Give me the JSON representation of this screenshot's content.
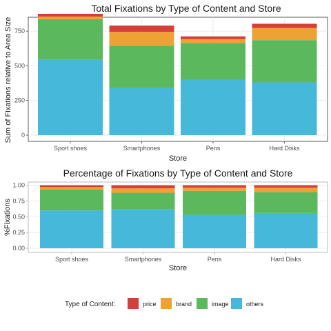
{
  "chart_data": [
    {
      "type": "bar",
      "stacked": true,
      "title": "Total Fixations by Type of Content and Store",
      "xlabel": "Store",
      "ylabel": "Sum of Fixations relative to Area Size",
      "ylim": [
        0,
        850
      ],
      "yticks": [
        "0",
        "250",
        "500",
        "750"
      ],
      "categories": [
        "Sport shoes",
        "Smartphones",
        "Pens",
        "Hard Disks"
      ],
      "series": [
        {
          "name": "others",
          "color": "#46B8DA",
          "values": [
            545,
            340,
            400,
            380
          ]
        },
        {
          "name": "image",
          "color": "#5CB85C",
          "values": [
            290,
            305,
            265,
            305
          ]
        },
        {
          "name": "brand",
          "color": "#EEA236",
          "values": [
            20,
            100,
            27,
            88
          ]
        },
        {
          "name": "price",
          "color": "#D43F3A",
          "values": [
            20,
            45,
            20,
            30
          ]
        }
      ],
      "grid": true
    },
    {
      "type": "bar",
      "stacked": true,
      "title": "Percentage of Fixations by Type of Content and Store",
      "xlabel": "Store",
      "ylabel": "%Fixations",
      "ylim": [
        0,
        1.05
      ],
      "yticks": [
        "0.00",
        "0.25",
        "0.50",
        "0.75",
        "1.00"
      ],
      "categories": [
        "Sport shoes",
        "Smartphones",
        "Pens",
        "Hard Disks"
      ],
      "series": [
        {
          "name": "others",
          "color": "#46B8DA",
          "values": [
            0.6,
            0.62,
            0.53,
            0.56
          ]
        },
        {
          "name": "image",
          "color": "#5CB85C",
          "values": [
            0.33,
            0.26,
            0.38,
            0.33
          ]
        },
        {
          "name": "brand",
          "color": "#EEA236",
          "values": [
            0.04,
            0.07,
            0.05,
            0.07
          ]
        },
        {
          "name": "price",
          "color": "#D43F3A",
          "values": [
            0.03,
            0.05,
            0.04,
            0.04
          ]
        }
      ],
      "grid": true
    }
  ],
  "legend": {
    "title": "Type of Content:",
    "placement": "bottom",
    "items": [
      {
        "label": "price",
        "color": "#D43F3A"
      },
      {
        "label": "brand",
        "color": "#EEA236"
      },
      {
        "label": "image",
        "color": "#5CB85C"
      },
      {
        "label": "others",
        "color": "#46B8DA"
      }
    ]
  }
}
